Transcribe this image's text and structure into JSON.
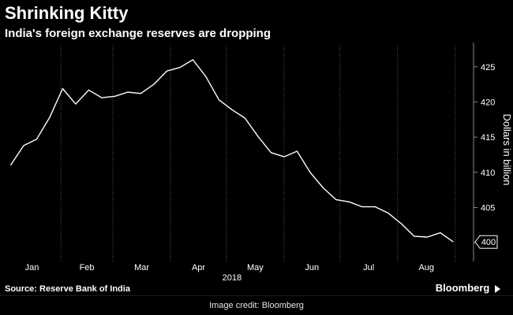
{
  "chart_data": {
    "type": "line",
    "title": "Shrinking Kitty",
    "subtitle": "India's foreign exchange reserves are dropping",
    "ylabel": "Dollars in billion",
    "xlabel": "2018",
    "ylim": [
      398,
      428
    ],
    "y_ticks": [
      400,
      405,
      410,
      415,
      420,
      425
    ],
    "x_tick_labels": [
      "Jan",
      "Feb",
      "Mar",
      "Apr",
      "May",
      "Jun",
      "Jul",
      "Aug"
    ],
    "grid": "vertical",
    "line_color": "#ffffff",
    "last_value_label": "400",
    "series": [
      {
        "values": [
          {
            "x": "2018-01-05",
            "y": 411.0
          },
          {
            "x": "2018-01-12",
            "y": 413.8
          },
          {
            "x": "2018-01-19",
            "y": 414.7
          },
          {
            "x": "2018-01-26",
            "y": 417.8
          },
          {
            "x": "2018-02-02",
            "y": 421.9
          },
          {
            "x": "2018-02-09",
            "y": 419.7
          },
          {
            "x": "2018-02-16",
            "y": 421.7
          },
          {
            "x": "2018-02-23",
            "y": 420.6
          },
          {
            "x": "2018-03-02",
            "y": 420.8
          },
          {
            "x": "2018-03-09",
            "y": 421.4
          },
          {
            "x": "2018-03-16",
            "y": 421.2
          },
          {
            "x": "2018-03-23",
            "y": 422.5
          },
          {
            "x": "2018-03-30",
            "y": 424.4
          },
          {
            "x": "2018-04-06",
            "y": 424.9
          },
          {
            "x": "2018-04-13",
            "y": 426.0
          },
          {
            "x": "2018-04-20",
            "y": 423.6
          },
          {
            "x": "2018-04-27",
            "y": 420.3
          },
          {
            "x": "2018-05-04",
            "y": 418.9
          },
          {
            "x": "2018-05-11",
            "y": 417.7
          },
          {
            "x": "2018-05-18",
            "y": 415.1
          },
          {
            "x": "2018-05-25",
            "y": 412.8
          },
          {
            "x": "2018-06-01",
            "y": 412.2
          },
          {
            "x": "2018-06-08",
            "y": 413.0
          },
          {
            "x": "2018-06-15",
            "y": 410.0
          },
          {
            "x": "2018-06-22",
            "y": 407.8
          },
          {
            "x": "2018-06-29",
            "y": 406.1
          },
          {
            "x": "2018-07-06",
            "y": 405.8
          },
          {
            "x": "2018-07-13",
            "y": 405.1
          },
          {
            "x": "2018-07-20",
            "y": 405.1
          },
          {
            "x": "2018-07-27",
            "y": 404.2
          },
          {
            "x": "2018-08-03",
            "y": 402.7
          },
          {
            "x": "2018-08-10",
            "y": 400.9
          },
          {
            "x": "2018-08-17",
            "y": 400.8
          },
          {
            "x": "2018-08-24",
            "y": 401.4
          },
          {
            "x": "2018-08-31",
            "y": 400.1
          }
        ]
      }
    ]
  },
  "footer": {
    "source": "Source:  Reserve Bank of India",
    "brand": "Bloomberg",
    "credit": "Image credit: Bloomberg"
  }
}
